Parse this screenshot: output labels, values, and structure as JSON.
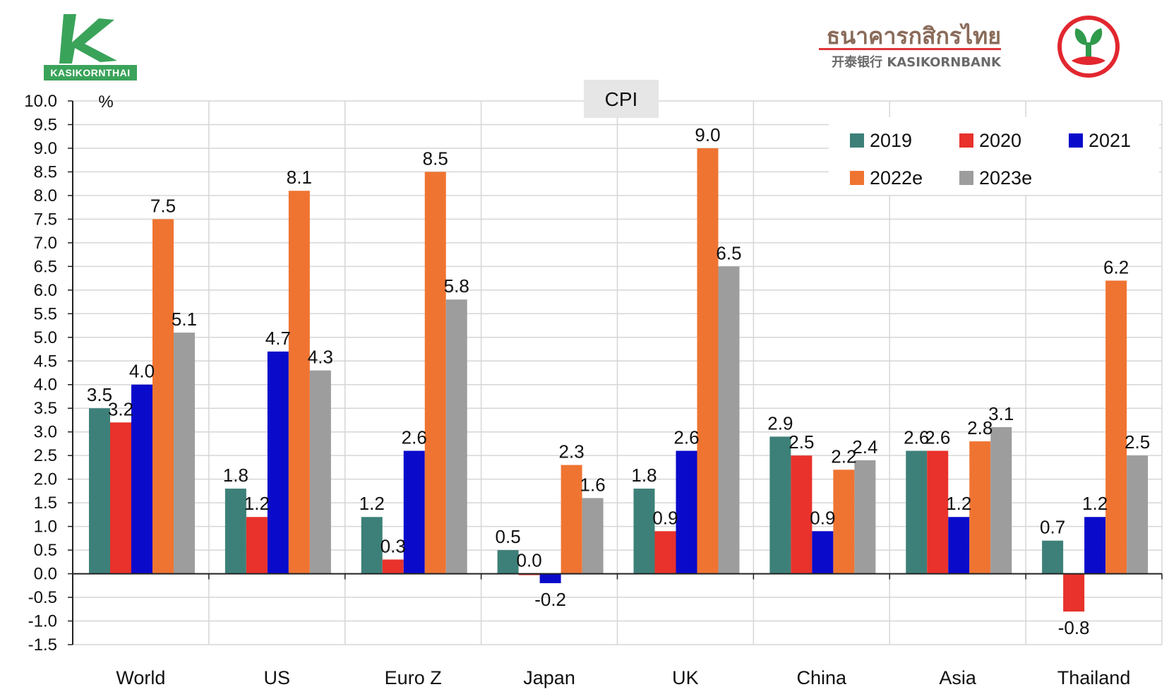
{
  "logos": {
    "left_label": "KASIKORNTHAI",
    "bank_thai": "ธนาคารกสิกรไทย",
    "bank_english": "开泰银行 KASIKORNBANK"
  },
  "chart_data": {
    "type": "bar",
    "title": "CPI",
    "ylabel": "%",
    "xlabel": "",
    "ylim": [
      -1.5,
      10.0
    ],
    "ytick_step": 0.5,
    "grid": true,
    "legend_position": "top-right",
    "categories": [
      "World",
      "US",
      "Euro Z",
      "Japan",
      "UK",
      "China",
      "Asia",
      "Thailand"
    ],
    "series": [
      {
        "name": "2019",
        "color": "#3d8079",
        "values": [
          3.5,
          1.8,
          1.2,
          0.5,
          1.8,
          2.9,
          2.6,
          0.7
        ],
        "labels": [
          "3.5",
          "1.8",
          "1.2",
          "0.5",
          "1.8",
          "2.9",
          "2.6",
          "0.7"
        ]
      },
      {
        "name": "2020",
        "color": "#e8322b",
        "values": [
          3.2,
          1.2,
          0.3,
          0.0,
          0.9,
          2.5,
          2.6,
          -0.8
        ],
        "labels": [
          "3.2",
          "1.2",
          "0.3",
          "0.0",
          "0.9",
          "2.5",
          "2.6",
          "-0.8"
        ]
      },
      {
        "name": "2021",
        "color": "#0a0acb",
        "values": [
          4.0,
          4.7,
          2.6,
          -0.2,
          2.6,
          0.9,
          1.2,
          1.2
        ],
        "labels": [
          "4.0",
          "4.7",
          "2.6",
          "-0.2",
          "2.6",
          "0.9",
          "1.2",
          "1.2"
        ]
      },
      {
        "name": "2022e",
        "color": "#ef7432",
        "values": [
          7.5,
          8.1,
          8.5,
          2.3,
          9.0,
          2.2,
          2.8,
          6.2
        ],
        "labels": [
          "7.5",
          "8.1",
          "8.5",
          "2.3",
          "9.0",
          "2.2",
          "2.8",
          "6.2"
        ]
      },
      {
        "name": "2023e",
        "color": "#9d9d9d",
        "values": [
          5.1,
          4.3,
          5.8,
          1.6,
          6.5,
          2.4,
          3.1,
          2.5
        ],
        "labels": [
          "5.1",
          "4.3",
          "5.8",
          "1.6",
          "6.5",
          "2.4",
          "3.1",
          "2.5"
        ]
      }
    ]
  }
}
